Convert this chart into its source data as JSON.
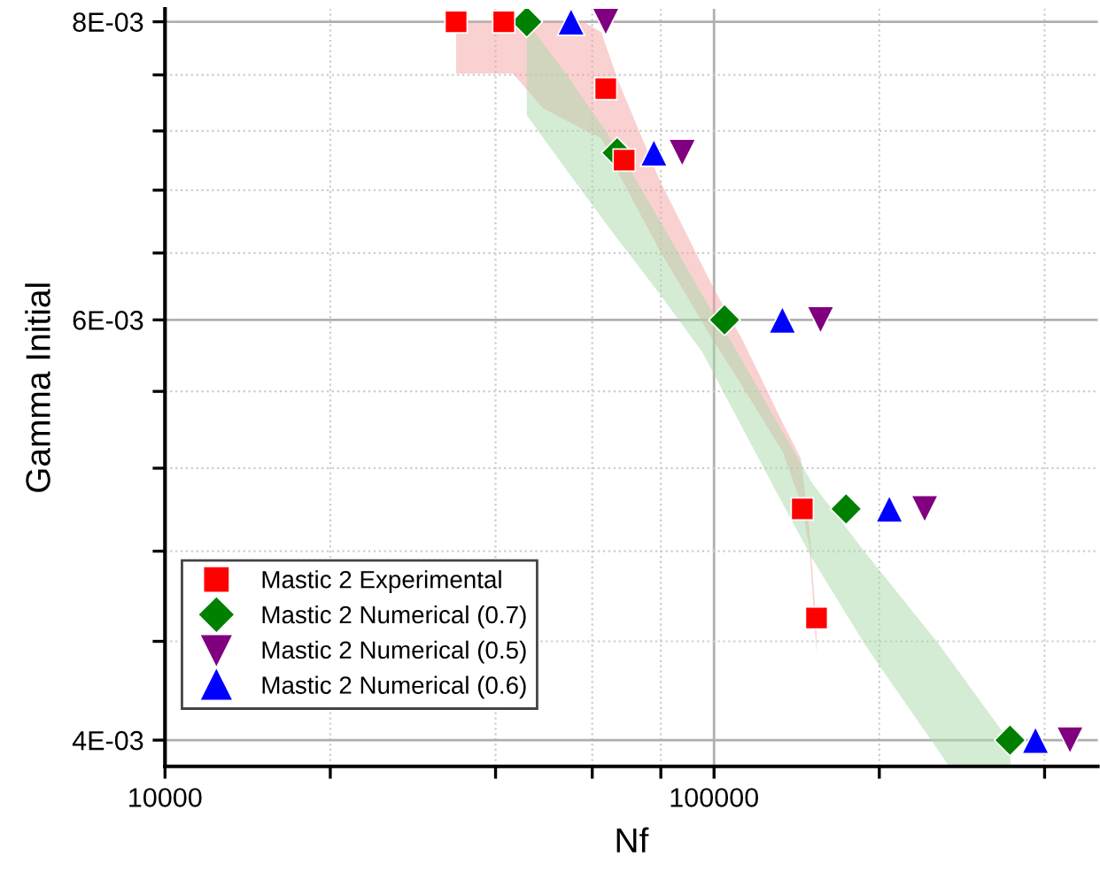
{
  "chart_data": {
    "type": "scatter",
    "xlabel": "Nf",
    "ylabel": "Gamma Initial",
    "log": "xy",
    "grid": true,
    "legend": "bottom left",
    "xlim": [
      10000,
      500000
    ],
    "ylim": [
      0.0039,
      0.0081
    ],
    "xticks": [
      10000,
      {
        "value": 20000,
        "label": null
      },
      {
        "value": 40000,
        "label": null
      },
      {
        "value": 60000,
        "label": null
      },
      {
        "value": 80000,
        "label": null
      },
      100000,
      {
        "value": 200000,
        "label": null
      },
      {
        "value": 400000,
        "label": null
      }
    ],
    "yticks": [
      {
        "value": 0.004,
        "label": "4E-03"
      },
      {
        "value": 0.0044,
        "label": null
      },
      {
        "value": 0.0048,
        "label": null
      },
      {
        "value": 0.0052,
        "label": null
      },
      {
        "value": 0.0056,
        "label": null
      },
      {
        "value": 0.006,
        "label": "6E-03"
      },
      {
        "value": 0.0064,
        "label": null
      },
      {
        "value": 0.0068,
        "label": null
      },
      {
        "value": 0.0072,
        "label": null
      },
      {
        "value": 0.0076,
        "label": null
      },
      {
        "value": 0.008,
        "label": "8E-03"
      }
    ],
    "series": [
      {
        "type": "line",
        "color": "#f4a3a3",
        "x": [
          33900,
          43000,
          48800,
          57800,
          62300,
          67000,
          79500,
          99300,
          112500,
          133500,
          143900,
          149200,
          153700
        ],
        "values": [
          null,
          null,
          null,
          null,
          null,
          null,
          null,
          null,
          null,
          null,
          null,
          null,
          null
        ],
        "lower": [
          0.00761,
          0.00761,
          0.00736,
          0.00721,
          0.00715,
          0.00691,
          0.00642,
          0.00589,
          0.00563,
          0.00528,
          0.00503,
          0.00482,
          0.00435
        ],
        "upper": [
          0.008,
          0.008,
          0.008,
          0.008,
          0.00792,
          0.00755,
          0.00687,
          0.0062,
          0.00589,
          0.00543,
          0.00525,
          0.0049,
          0.00446
        ]
      },
      {
        "type": "line",
        "color": "#a9d9a9",
        "x": [
          45600,
          53700,
          65600,
          78900,
          95000,
          110100,
          130600,
          151400,
          189000,
          254300,
          267800,
          346700
        ],
        "values": [
          null,
          null,
          null,
          null,
          null,
          null,
          null,
          null,
          null,
          null,
          null,
          null
        ],
        "lower": [
          0.00731,
          0.00694,
          0.00652,
          0.00617,
          0.00582,
          0.00546,
          0.00507,
          0.00476,
          0.00438,
          0.00397,
          0.0039,
          0.0039
        ],
        "upper": [
          0.008,
          0.00761,
          0.00712,
          0.00663,
          0.00615,
          0.00582,
          0.00543,
          0.00512,
          0.00479,
          0.0044,
          0.00433,
          0.00399
        ]
      },
      {
        "name": "Mastic 2 Experimental",
        "color": "#ff0000",
        "marker": "square",
        "x": [
          33900,
          41400,
          63500,
          68600,
          144800,
          153700
        ],
        "values": [
          0.008,
          0.008,
          0.0075,
          0.007,
          0.005,
          0.0045
        ]
      },
      {
        "name": "Mastic 2 Numerical (0.7)",
        "color": "#008000",
        "marker": "diamond",
        "x": [
          45600,
          66600,
          104500,
          174000,
          346000
        ],
        "values": [
          0.008,
          0.00705,
          0.006,
          0.005,
          0.004
        ]
      },
      {
        "name": "Mastic 2 Numerical (0.5)",
        "color": "#800080",
        "marker": "triangle_down",
        "x": [
          63500,
          87500,
          156300,
          241900,
          445000
        ],
        "values": [
          0.008,
          0.00705,
          0.006,
          0.005,
          0.004
        ]
      },
      {
        "name": "Mastic 2 Numerical (0.6)",
        "color": "#0000ff",
        "marker": "triangle",
        "x": [
          54900,
          77700,
          133200,
          208600,
          385000
        ],
        "values": [
          0.008,
          0.00705,
          0.006,
          0.005,
          0.004
        ]
      }
    ]
  }
}
